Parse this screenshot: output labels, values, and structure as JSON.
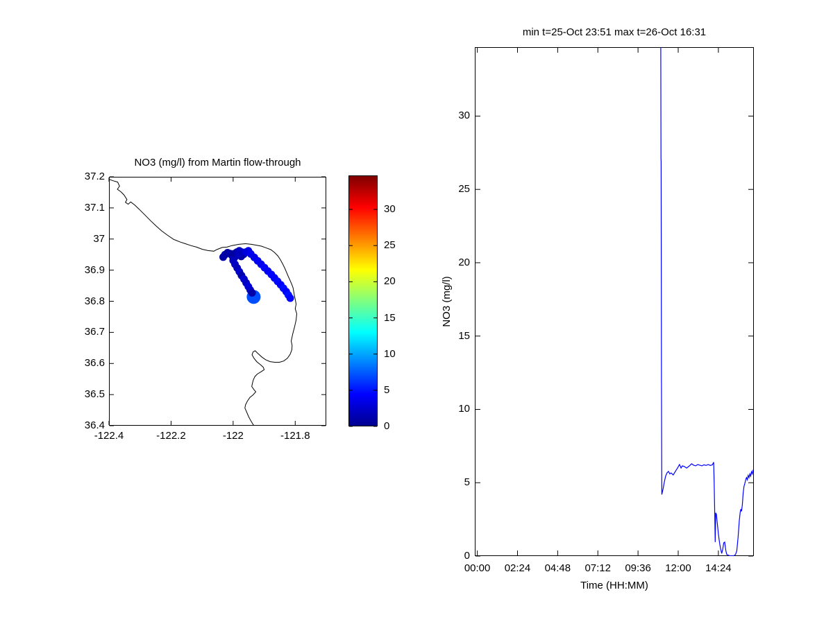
{
  "background": "#FFFFFF",
  "chart_data": [
    {
      "type": "scatter",
      "title": "NO3 (mg/l) from Martin flow-through",
      "xlabel": "",
      "ylabel": "",
      "xlim": [
        -122.4,
        -121.7
      ],
      "ylim": [
        36.4,
        37.2
      ],
      "xticks": [
        -122.4,
        -122.2,
        -122.0,
        -121.8
      ],
      "xtick_labels": [
        "-122.4",
        "-122.2",
        "-122",
        "-121.8"
      ],
      "yticks": [
        36.4,
        36.5,
        36.6,
        36.7,
        36.8,
        36.9,
        37.0,
        37.1,
        37.2
      ],
      "ytick_labels": [
        "36.4",
        "36.5",
        "36.6",
        "36.7",
        "36.8",
        "36.9",
        "37",
        "37.1",
        "37.2"
      ],
      "colormap": "jet",
      "clim": [
        0,
        34.7
      ],
      "coastline_color": "#000000",
      "marker_radius_px": 5.5,
      "colorbar": {
        "range": [
          0,
          34.7
        ],
        "ticks": [
          0,
          5,
          10,
          15,
          20,
          25,
          30
        ],
        "tick_labels": [
          "0",
          "5",
          "10",
          "15",
          "20",
          "25",
          "30"
        ],
        "gradient": [
          [
            0,
            "#00008F"
          ],
          [
            0.125,
            "#0000FF"
          ],
          [
            0.375,
            "#00FFFF"
          ],
          [
            0.625,
            "#FFFF00"
          ],
          [
            0.875,
            "#FF0000"
          ],
          [
            1,
            "#800000"
          ]
        ]
      },
      "coastline": [
        [
          -122.4,
          37.192
        ],
        [
          -122.386,
          37.187
        ],
        [
          -122.372,
          37.183
        ],
        [
          -122.366,
          37.17
        ],
        [
          -122.373,
          37.16
        ],
        [
          -122.362,
          37.152
        ],
        [
          -122.352,
          37.142
        ],
        [
          -122.342,
          37.127
        ],
        [
          -122.347,
          37.118
        ],
        [
          -122.338,
          37.112
        ],
        [
          -122.33,
          37.119
        ],
        [
          -122.318,
          37.11
        ],
        [
          -122.304,
          37.097
        ],
        [
          -122.285,
          37.078
        ],
        [
          -122.266,
          37.059
        ],
        [
          -122.247,
          37.041
        ],
        [
          -122.23,
          37.026
        ],
        [
          -122.211,
          37.012
        ],
        [
          -122.192,
          36.999
        ],
        [
          -122.172,
          36.991
        ],
        [
          -122.154,
          36.985
        ],
        [
          -122.136,
          36.979
        ],
        [
          -122.118,
          36.974
        ],
        [
          -122.099,
          36.967
        ],
        [
          -122.081,
          36.963
        ],
        [
          -122.062,
          36.961
        ],
        [
          -122.053,
          36.966
        ],
        [
          -122.035,
          36.973
        ],
        [
          -122.02,
          36.974
        ],
        [
          -122.004,
          36.979
        ],
        [
          -121.982,
          36.983
        ],
        [
          -121.96,
          36.985
        ],
        [
          -121.941,
          36.983
        ],
        [
          -121.924,
          36.98
        ],
        [
          -121.908,
          36.977
        ],
        [
          -121.892,
          36.971
        ],
        [
          -121.879,
          36.966
        ],
        [
          -121.867,
          36.957
        ],
        [
          -121.856,
          36.946
        ],
        [
          -121.848,
          36.934
        ],
        [
          -121.841,
          36.921
        ],
        [
          -121.834,
          36.907
        ],
        [
          -121.828,
          36.893
        ],
        [
          -121.822,
          36.879
        ],
        [
          -121.816,
          36.866
        ],
        [
          -121.811,
          36.854
        ],
        [
          -121.807,
          36.843
        ],
        [
          -121.803,
          36.821
        ],
        [
          -121.8,
          36.806
        ],
        [
          -121.797,
          36.791
        ],
        [
          -121.8,
          36.776
        ],
        [
          -121.795,
          36.76
        ],
        [
          -121.797,
          36.74
        ],
        [
          -121.802,
          36.718
        ],
        [
          -121.808,
          36.695
        ],
        [
          -121.813,
          36.672
        ],
        [
          -121.81,
          36.658
        ],
        [
          -121.811,
          36.644
        ],
        [
          -121.816,
          36.63
        ],
        [
          -121.825,
          36.617
        ],
        [
          -121.837,
          36.608
        ],
        [
          -121.851,
          36.604
        ],
        [
          -121.866,
          36.604
        ],
        [
          -121.881,
          36.606
        ],
        [
          -121.895,
          36.612
        ],
        [
          -121.908,
          36.621
        ],
        [
          -121.92,
          36.632
        ],
        [
          -121.929,
          36.641
        ],
        [
          -121.936,
          36.637
        ],
        [
          -121.939,
          36.628
        ],
        [
          -121.933,
          36.617
        ],
        [
          -121.924,
          36.606
        ],
        [
          -121.912,
          36.596
        ],
        [
          -121.903,
          36.588
        ],
        [
          -121.9,
          36.58
        ],
        [
          -121.911,
          36.573
        ],
        [
          -121.922,
          36.566
        ],
        [
          -121.93,
          36.558
        ],
        [
          -121.935,
          36.547
        ],
        [
          -121.938,
          36.536
        ],
        [
          -121.94,
          36.526
        ],
        [
          -121.933,
          36.516
        ],
        [
          -121.927,
          36.509
        ],
        [
          -121.936,
          36.499
        ],
        [
          -121.946,
          36.491
        ],
        [
          -121.954,
          36.479
        ],
        [
          -121.96,
          36.467
        ],
        [
          -121.962,
          36.457
        ],
        [
          -121.956,
          36.443
        ],
        [
          -121.95,
          36.429
        ],
        [
          -121.943,
          36.416
        ],
        [
          -121.935,
          36.403
        ],
        [
          -121.931,
          36.397
        ]
      ],
      "points": [
        [
          -122.032,
          36.942,
          0.8
        ],
        [
          -122.026,
          36.95,
          1.2
        ],
        [
          -122.018,
          36.956,
          0.5
        ],
        [
          -122.01,
          36.953,
          1.0
        ],
        [
          -122.003,
          36.946,
          0.7
        ],
        [
          -121.996,
          36.94,
          1.4
        ],
        [
          -121.99,
          36.947,
          0.9
        ],
        [
          -121.996,
          36.953,
          0.6
        ],
        [
          -121.988,
          36.958,
          1.1
        ],
        [
          -121.98,
          36.962,
          1.6
        ],
        [
          -121.972,
          36.958,
          2.2
        ],
        [
          -121.966,
          36.951,
          1.2
        ],
        [
          -121.974,
          36.944,
          0.8
        ],
        [
          -121.983,
          36.95,
          1.8
        ],
        [
          -121.959,
          36.958,
          2.8
        ],
        [
          -121.951,
          36.962,
          3.2
        ],
        [
          -121.943,
          36.952,
          3.6
        ],
        [
          -121.932,
          36.941,
          3.4
        ],
        [
          -121.921,
          36.93,
          3.9
        ],
        [
          -121.91,
          36.919,
          3.7
        ],
        [
          -121.899,
          36.908,
          4.2
        ],
        [
          -121.888,
          36.897,
          4.0
        ],
        [
          -121.877,
          36.886,
          4.4
        ],
        [
          -121.867,
          36.875,
          4.1
        ],
        [
          -121.857,
          36.864,
          4.6
        ],
        [
          -121.847,
          36.853,
          4.3
        ],
        [
          -121.838,
          36.842,
          4.8
        ],
        [
          -121.829,
          36.831,
          4.4
        ],
        [
          -121.822,
          36.82,
          4.9
        ],
        [
          -121.816,
          36.81,
          4.5
        ],
        [
          -122.0,
          36.931,
          1.8
        ],
        [
          -121.994,
          36.919,
          2.1
        ],
        [
          -121.987,
          36.907,
          1.6
        ],
        [
          -121.98,
          36.895,
          2.3
        ],
        [
          -121.973,
          36.883,
          1.2
        ],
        [
          -121.965,
          36.871,
          2.5
        ],
        [
          -121.958,
          36.859,
          2.0
        ],
        [
          -121.951,
          36.847,
          2.8
        ],
        [
          -121.945,
          36.836,
          2.4
        ],
        [
          -121.934,
          36.814,
          7.0,
          10
        ],
        [
          -121.939,
          36.827,
          1.0
        ]
      ]
    },
    {
      "type": "line",
      "title": "min t=25-Oct 23:51 max t=26-Oct 16:31",
      "xlabel": "Time (HH:MM)",
      "ylabel": "NO3 (mg/l)",
      "x_unit": "hours since 26-Oct 00:00",
      "xlim": [
        -0.15,
        16.52
      ],
      "ylim": [
        0,
        34.7
      ],
      "xticks": [
        0,
        2.4,
        4.8,
        7.2,
        9.6,
        12.0,
        14.4
      ],
      "xtick_labels": [
        "00:00",
        "02:24",
        "04:48",
        "07:12",
        "09:36",
        "12:00",
        "14:24"
      ],
      "yticks": [
        0,
        5,
        10,
        15,
        20,
        25,
        30
      ],
      "ytick_labels": [
        "0",
        "5",
        "10",
        "15",
        "20",
        "25",
        "30"
      ],
      "line_color": "#0000FF",
      "points": [
        [
          10.96,
          34.7
        ],
        [
          10.97,
          27.1
        ],
        [
          10.98,
          26.9
        ],
        [
          11.0,
          12.0
        ],
        [
          11.02,
          4.2
        ],
        [
          11.1,
          4.6
        ],
        [
          11.17,
          5.05
        ],
        [
          11.25,
          5.45
        ],
        [
          11.33,
          5.67
        ],
        [
          11.42,
          5.77
        ],
        [
          11.5,
          5.6
        ],
        [
          11.58,
          5.67
        ],
        [
          11.7,
          5.53
        ],
        [
          11.83,
          5.77
        ],
        [
          11.96,
          6.0
        ],
        [
          12.08,
          6.24
        ],
        [
          12.17,
          6.0
        ],
        [
          12.25,
          6.15
        ],
        [
          12.38,
          6.1
        ],
        [
          12.5,
          6.0
        ],
        [
          12.67,
          6.15
        ],
        [
          12.8,
          6.29
        ],
        [
          12.92,
          6.2
        ],
        [
          13.04,
          6.15
        ],
        [
          13.17,
          6.24
        ],
        [
          13.29,
          6.2
        ],
        [
          13.42,
          6.15
        ],
        [
          13.54,
          6.22
        ],
        [
          13.67,
          6.18
        ],
        [
          13.79,
          6.24
        ],
        [
          13.92,
          6.18
        ],
        [
          14.04,
          6.22
        ],
        [
          14.12,
          6.4
        ],
        [
          14.15,
          5.0
        ],
        [
          14.18,
          3.0
        ],
        [
          14.21,
          0.95
        ],
        [
          14.24,
          2.95
        ],
        [
          14.28,
          2.85
        ],
        [
          14.33,
          2.3
        ],
        [
          14.4,
          1.5
        ],
        [
          14.47,
          0.9
        ],
        [
          14.53,
          0.5
        ],
        [
          14.6,
          0.18
        ],
        [
          14.66,
          0.45
        ],
        [
          14.72,
          0.9
        ],
        [
          14.78,
          0.95
        ],
        [
          14.84,
          0.4
        ],
        [
          14.9,
          0.12
        ],
        [
          15.0,
          0.05
        ],
        [
          15.1,
          0.02
        ],
        [
          15.2,
          0.0
        ],
        [
          15.32,
          0.02
        ],
        [
          15.42,
          0.1
        ],
        [
          15.5,
          0.35
        ],
        [
          15.58,
          1.3
        ],
        [
          15.65,
          2.4
        ],
        [
          15.7,
          2.95
        ],
        [
          15.74,
          3.2
        ],
        [
          15.78,
          3.05
        ],
        [
          15.83,
          3.5
        ],
        [
          15.88,
          4.3
        ],
        [
          15.93,
          4.75
        ],
        [
          15.98,
          4.95
        ],
        [
          16.03,
          5.2
        ],
        [
          16.08,
          5.35
        ],
        [
          16.13,
          5.2
        ],
        [
          16.18,
          5.5
        ],
        [
          16.23,
          5.35
        ],
        [
          16.28,
          5.6
        ],
        [
          16.33,
          5.45
        ],
        [
          16.38,
          5.75
        ],
        [
          16.43,
          5.6
        ],
        [
          16.47,
          5.85
        ],
        [
          16.52,
          5.8
        ]
      ]
    }
  ]
}
